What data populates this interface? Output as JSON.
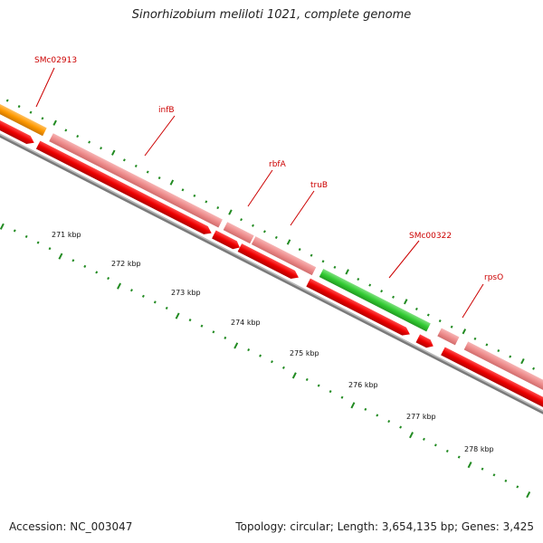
{
  "title": "Sinorhizobium meliloti 1021, complete genome",
  "footer": {
    "accession": "Accession: NC_003047",
    "summary": "Topology: circular; Length: 3,654,135 bp; Genes: 3,425"
  },
  "colors": {
    "forward_cds": "#f08a8a",
    "reverse_cds": "#ee0000",
    "gene_green": "#33cc33",
    "gene_orange": "#ff9900",
    "backbone": "#888888",
    "tick": "#228b22",
    "label": "#cc0000"
  },
  "genes": [
    {
      "name": "SMc02913",
      "track": "outer",
      "color": "orange"
    },
    {
      "name": "infB",
      "track": "outer",
      "color": "pink"
    },
    {
      "name": "rbfA",
      "track": "outer",
      "color": "pink"
    },
    {
      "name": "truB",
      "track": "outer",
      "color": "pink"
    },
    {
      "name": "SMc00322",
      "track": "outer",
      "color": "green"
    },
    {
      "name": "rpsO",
      "track": "outer",
      "color": "pink"
    }
  ],
  "ticks": [
    "271 kbp",
    "272 kbp",
    "273 kbp",
    "274 kbp",
    "275 kbp",
    "276 kbp",
    "277 kbp",
    "278 kbp"
  ]
}
